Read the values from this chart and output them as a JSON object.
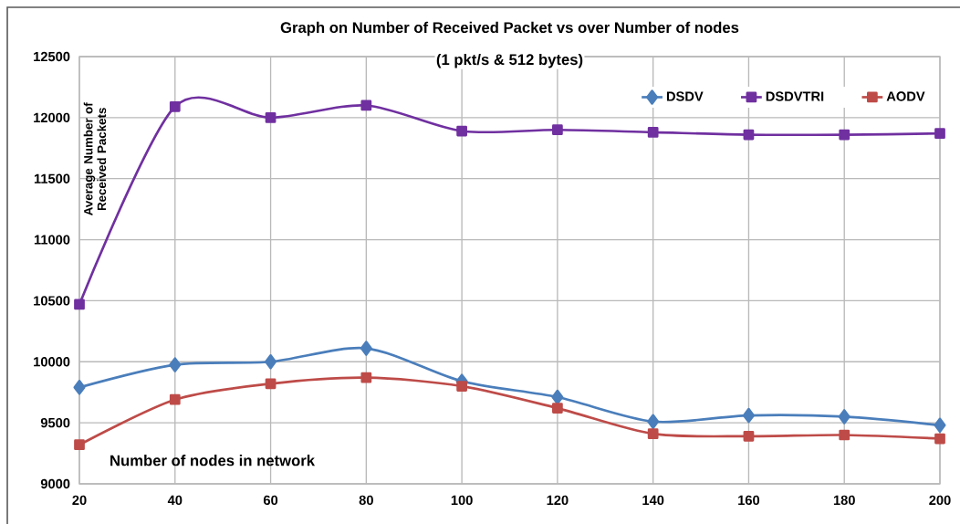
{
  "chart_data": {
    "type": "line",
    "title": "Graph on Number of Received Packet  vs over Number of nodes",
    "subtitle": "(1 pkt/s & 512 bytes)",
    "xlabel": "Number of nodes in network",
    "ylabel": "Average Number of Received Packets",
    "x": [
      20,
      40,
      60,
      80,
      100,
      120,
      140,
      160,
      180,
      200
    ],
    "series": [
      {
        "name": "DSDV",
        "color": "#4a7ebb",
        "marker": "diamond",
        "values": [
          9790,
          9975,
          10000,
          10110,
          9840,
          9710,
          9510,
          9560,
          9550,
          9480
        ]
      },
      {
        "name": "DSDVTRI",
        "color": "#7030a0",
        "marker": "square",
        "values": [
          10470,
          12090,
          12000,
          12100,
          11890,
          11900,
          11880,
          11860,
          11860,
          11870
        ]
      },
      {
        "name": "AODV",
        "color": "#be4b48",
        "marker": "square",
        "values": [
          9320,
          9690,
          9820,
          9870,
          9800,
          9620,
          9410,
          9390,
          9400,
          9370
        ]
      }
    ],
    "xlim": [
      20,
      200
    ],
    "xticks": [
      20,
      40,
      60,
      80,
      100,
      120,
      140,
      160,
      180,
      200
    ],
    "ylim": [
      9000,
      12500
    ],
    "yticks": [
      9000,
      9500,
      10000,
      10500,
      11000,
      11500,
      12000,
      12500
    ],
    "grid": true,
    "legend": "top right"
  }
}
